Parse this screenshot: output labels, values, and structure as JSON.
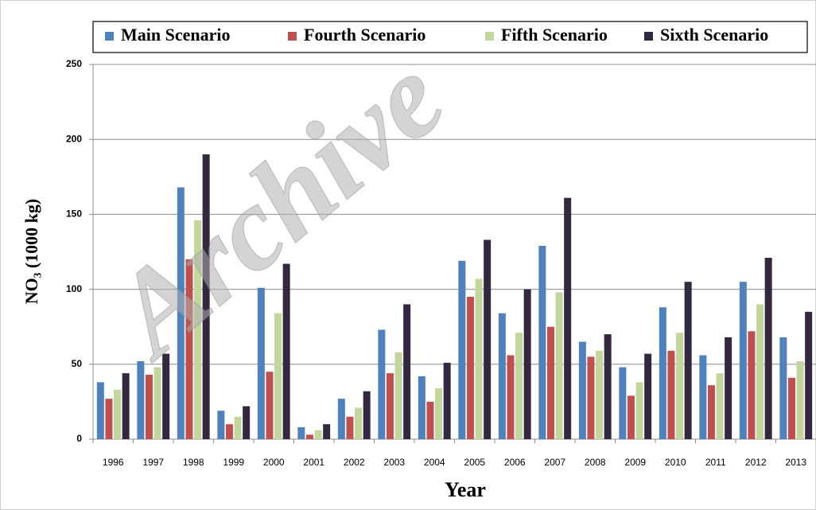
{
  "chart_data": {
    "type": "bar",
    "watermark": "Archive",
    "y_label": "NO₃ (1000 kg)",
    "x_label": "Year",
    "categories": [
      "1996",
      "1997",
      "1998",
      "1999",
      "2000",
      "2001",
      "2002",
      "2003",
      "2004",
      "2005",
      "2006",
      "2007",
      "2008",
      "2009",
      "2010",
      "2011",
      "2012",
      "2013"
    ],
    "series": [
      {
        "name": "Main Scenario",
        "color": "#4f81bd",
        "values": [
          38,
          52,
          168,
          19,
          101,
          8,
          27,
          73,
          42,
          119,
          84,
          129,
          65,
          48,
          88,
          56,
          105,
          68
        ]
      },
      {
        "name": "Fourth Scenario",
        "color": "#c0504d",
        "values": [
          27,
          43,
          120,
          10,
          45,
          3,
          15,
          44,
          25,
          95,
          56,
          75,
          55,
          29,
          59,
          36,
          72,
          41
        ]
      },
      {
        "name": "Fifth Scenario",
        "color": "#c3d69b",
        "values": [
          33,
          48,
          146,
          15,
          84,
          6,
          21,
          58,
          34,
          107,
          71,
          98,
          59,
          38,
          71,
          44,
          90,
          52
        ]
      },
      {
        "name": "Sixth Scenario",
        "color": "#32283f",
        "values": [
          44,
          57,
          190,
          22,
          117,
          10,
          32,
          90,
          51,
          133,
          100,
          161,
          70,
          57,
          105,
          68,
          121,
          85
        ]
      }
    ],
    "ylim": [
      0,
      250
    ],
    "yticks": [
      0,
      50,
      100,
      150,
      200,
      250
    ],
    "grid": true,
    "legend": "top"
  }
}
